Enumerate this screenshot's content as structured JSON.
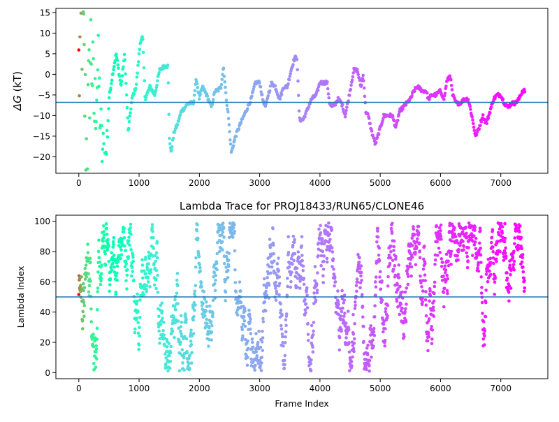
{
  "chart_data": [
    {
      "type": "scatter",
      "title": "",
      "xlabel": "",
      "ylabel": "ΔG (kT)",
      "ylabel_symbol": "ΔG",
      "ylabel_unit": " (kT)",
      "xlim": [
        -380,
        7780
      ],
      "ylim": [
        -24,
        16
      ],
      "xticks": [
        0,
        1000,
        2000,
        3000,
        4000,
        5000,
        6000,
        7000
      ],
      "xtick_labels": [
        "0",
        "1000",
        "2000",
        "3000",
        "4000",
        "5000",
        "6000",
        "7000"
      ],
      "yticks": [
        -20,
        -15,
        -10,
        -5,
        0,
        5,
        10,
        15
      ],
      "ytick_labels": [
        "−20",
        "−15",
        "−10",
        "−5",
        "0",
        "5",
        "10",
        "15"
      ],
      "hline": -6.8,
      "hline_color": "#1f77b4",
      "colormap": "rainbow (reversed over frame index: red at 0, violet at end)",
      "n_frames": 7400,
      "path_knots": [
        [
          0,
          0
        ],
        [
          60,
          14
        ],
        [
          130,
          -20
        ],
        [
          200,
          8
        ],
        [
          260,
          -10
        ],
        [
          320,
          2
        ],
        [
          380,
          -18
        ],
        [
          450,
          -21
        ],
        [
          500,
          -6
        ],
        [
          560,
          0
        ],
        [
          620,
          5
        ],
        [
          700,
          -3
        ],
        [
          760,
          5
        ],
        [
          820,
          -14
        ],
        [
          880,
          -6
        ],
        [
          950,
          -3
        ],
        [
          1020,
          8
        ],
        [
          1060,
          9
        ],
        [
          1100,
          -6
        ],
        [
          1180,
          -3
        ],
        [
          1260,
          -5
        ],
        [
          1340,
          1
        ],
        [
          1420,
          2
        ],
        [
          1480,
          2
        ],
        [
          1500,
          -15
        ],
        [
          1530,
          -19
        ],
        [
          1580,
          -14
        ],
        [
          1640,
          -12
        ],
        [
          1700,
          -9
        ],
        [
          1760,
          -8
        ],
        [
          1820,
          -7
        ],
        [
          1900,
          -7
        ],
        [
          1950,
          -1
        ],
        [
          2000,
          -6
        ],
        [
          2050,
          -3
        ],
        [
          2120,
          -5
        ],
        [
          2200,
          -8
        ],
        [
          2260,
          -4
        ],
        [
          2300,
          -4
        ],
        [
          2360,
          -3
        ],
        [
          2400,
          2
        ],
        [
          2440,
          -5
        ],
        [
          2480,
          -10
        ],
        [
          2530,
          -19
        ],
        [
          2600,
          -15
        ],
        [
          2680,
          -12
        ],
        [
          2740,
          -10
        ],
        [
          2800,
          -8
        ],
        [
          2860,
          -6
        ],
        [
          2930,
          -2
        ],
        [
          3000,
          -2
        ],
        [
          3050,
          -6
        ],
        [
          3100,
          -8
        ],
        [
          3140,
          -5
        ],
        [
          3200,
          -2
        ],
        [
          3260,
          -3
        ],
        [
          3330,
          -6
        ],
        [
          3400,
          -3
        ],
        [
          3460,
          -3
        ],
        [
          3520,
          1
        ],
        [
          3580,
          4
        ],
        [
          3620,
          4
        ],
        [
          3660,
          -11
        ],
        [
          3720,
          -11
        ],
        [
          3780,
          -9
        ],
        [
          3860,
          -6
        ],
        [
          3940,
          -5
        ],
        [
          4000,
          -2
        ],
        [
          4060,
          -2
        ],
        [
          4120,
          -2
        ],
        [
          4160,
          -7
        ],
        [
          4200,
          -8
        ],
        [
          4260,
          -7
        ],
        [
          4300,
          -6
        ],
        [
          4360,
          -7
        ],
        [
          4420,
          -10
        ],
        [
          4500,
          -4
        ],
        [
          4560,
          1
        ],
        [
          4620,
          1
        ],
        [
          4680,
          -3
        ],
        [
          4720,
          0
        ],
        [
          4760,
          -9
        ],
        [
          4800,
          -10
        ],
        [
          4860,
          -14
        ],
        [
          4920,
          -17
        ],
        [
          4960,
          -15
        ],
        [
          5000,
          -13
        ],
        [
          5060,
          -10
        ],
        [
          5120,
          -10
        ],
        [
          5200,
          -10
        ],
        [
          5260,
          -13
        ],
        [
          5320,
          -9
        ],
        [
          5380,
          -8
        ],
        [
          5440,
          -7
        ],
        [
          5500,
          -6
        ],
        [
          5560,
          -4
        ],
        [
          5620,
          -3
        ],
        [
          5700,
          -4
        ],
        [
          5760,
          -4
        ],
        [
          5800,
          -6
        ],
        [
          5860,
          -5
        ],
        [
          5920,
          -5
        ],
        [
          6000,
          -4
        ],
        [
          6060,
          -6
        ],
        [
          6100,
          -2
        ],
        [
          6160,
          0
        ],
        [
          6200,
          -5
        ],
        [
          6260,
          -7
        ],
        [
          6320,
          -7
        ],
        [
          6400,
          -6
        ],
        [
          6460,
          -6
        ],
        [
          6520,
          -10
        ],
        [
          6580,
          -15
        ],
        [
          6640,
          -13
        ],
        [
          6700,
          -10
        ],
        [
          6760,
          -12
        ],
        [
          6820,
          -9
        ],
        [
          6880,
          -6
        ],
        [
          6940,
          -5
        ],
        [
          7000,
          -5
        ],
        [
          7060,
          -7
        ],
        [
          7120,
          -8
        ],
        [
          7180,
          -7
        ],
        [
          7240,
          -7
        ],
        [
          7300,
          -6
        ],
        [
          7360,
          -4
        ],
        [
          7400,
          -4
        ]
      ]
    },
    {
      "type": "scatter",
      "title": "Lambda Trace for PROJ18433/RUN65/CLONE46",
      "xlabel": "Frame Index",
      "ylabel": "Lambda Index",
      "xlim": [
        -380,
        7780
      ],
      "ylim": [
        -4,
        104
      ],
      "xticks": [
        0,
        1000,
        2000,
        3000,
        4000,
        5000,
        6000,
        7000
      ],
      "xtick_labels": [
        "0",
        "1000",
        "2000",
        "3000",
        "4000",
        "5000",
        "6000",
        "7000"
      ],
      "yticks": [
        0,
        20,
        40,
        60,
        80,
        100
      ],
      "ytick_labels": [
        "0",
        "20",
        "40",
        "60",
        "80",
        "100"
      ],
      "hline": 50,
      "hline_color": "#1f77b4",
      "colormap": "rainbow (reversed over frame index: red at 0, violet at end)",
      "n_frames": 7400,
      "value_range": [
        1,
        99
      ]
    }
  ]
}
